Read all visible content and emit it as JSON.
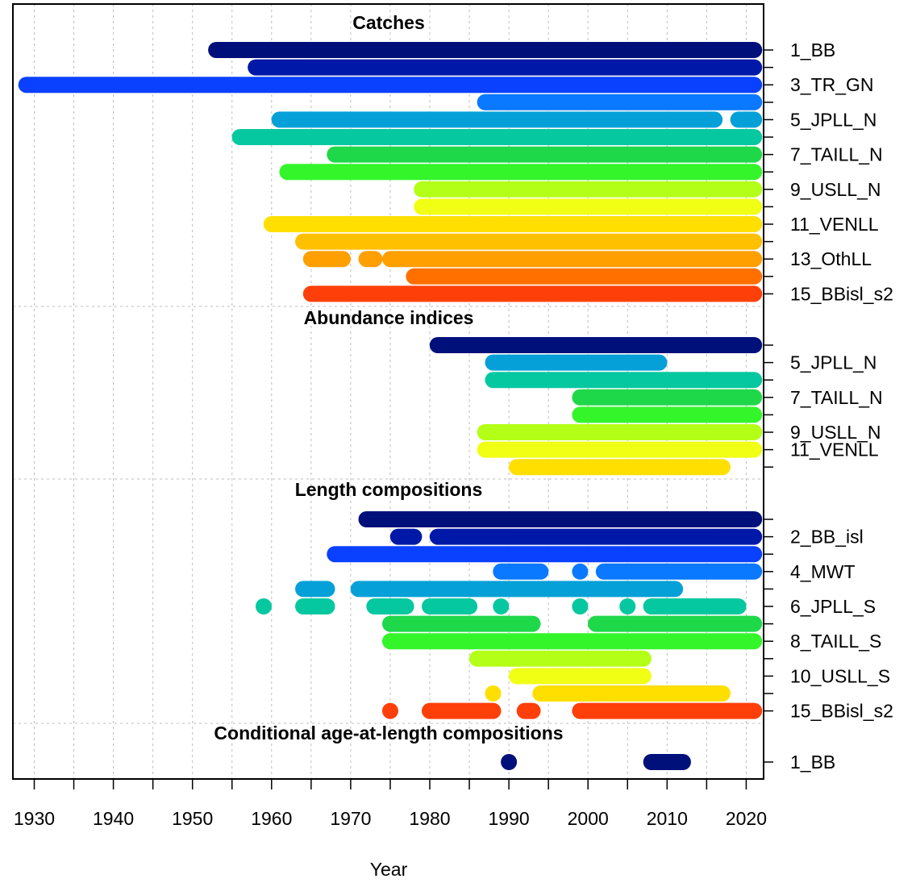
{
  "chart_data": {
    "type": "timeline",
    "xlabel": "Year",
    "xlim": [
      1927.3,
      2022.2
    ],
    "x_ticks": [
      1930,
      1940,
      1950,
      1960,
      1970,
      1980,
      1990,
      2000,
      2010,
      2020
    ],
    "grid": true,
    "sections": [
      {
        "title": "Catches",
        "labels": [
          {
            "row": 1,
            "text": "1_BB"
          },
          {
            "row": 3,
            "text": "3_TR_GN"
          },
          {
            "row": 5,
            "text": "5_JPLL_N"
          },
          {
            "row": 7,
            "text": "7_TAILL_N"
          },
          {
            "row": 9,
            "text": "9_USLL_N"
          },
          {
            "row": 11,
            "text": "11_VENLL"
          },
          {
            "row": 13,
            "text": "13_OthLL"
          },
          {
            "row": 15,
            "text": "15_BBisl_s2"
          }
        ],
        "rows": [
          {
            "color": "#00107a",
            "segments": [
              [
                1953,
                2021
              ]
            ]
          },
          {
            "color": "#0018a8",
            "segments": [
              [
                1958,
                2021
              ]
            ]
          },
          {
            "color": "#0a40ff",
            "segments": [
              [
                1929,
                2021
              ]
            ]
          },
          {
            "color": "#0a78ff",
            "segments": [
              [
                1987,
                2021
              ]
            ]
          },
          {
            "color": "#06a0d8",
            "segments": [
              [
                1961,
                2016
              ],
              [
                2019,
                2021
              ]
            ]
          },
          {
            "color": "#06c8a0",
            "segments": [
              [
                1956,
                2021
              ]
            ]
          },
          {
            "color": "#1fd84a",
            "segments": [
              [
                1968,
                2021
              ]
            ]
          },
          {
            "color": "#34f52a",
            "segments": [
              [
                1962,
                2021
              ]
            ]
          },
          {
            "color": "#b4ff18",
            "segments": [
              [
                1979,
                2021
              ]
            ]
          },
          {
            "color": "#f0ff14",
            "segments": [
              [
                1979,
                2021
              ]
            ]
          },
          {
            "color": "#ffdf00",
            "segments": [
              [
                1960,
                2021
              ]
            ]
          },
          {
            "color": "#ffc000",
            "segments": [
              [
                1964,
                2021
              ]
            ]
          },
          {
            "color": "#ff9f00",
            "segments": [
              [
                1965,
                1969
              ],
              [
                1972,
                1973
              ],
              [
                1975,
                2021
              ]
            ]
          },
          {
            "color": "#ff7000",
            "segments": [
              [
                1978,
                2021
              ]
            ]
          },
          {
            "color": "#ff3f0a",
            "segments": [
              [
                1965,
                2021
              ]
            ]
          }
        ]
      },
      {
        "title": "Abundance indices",
        "labels": [
          {
            "row": 2,
            "text": "5_JPLL_N"
          },
          {
            "row": 4,
            "text": "7_TAILL_N"
          },
          {
            "row": 6,
            "text": "9_USLL_N"
          },
          {
            "row": 7,
            "text": "11_VENLL"
          }
        ],
        "rows": [
          {
            "color": "#00107a",
            "segments": [
              [
                1981,
                2021
              ]
            ]
          },
          {
            "color": "#06a0d8",
            "segments": [
              [
                1988,
                2009
              ]
            ]
          },
          {
            "color": "#06c8a0",
            "segments": [
              [
                1988,
                2021
              ]
            ]
          },
          {
            "color": "#1fd84a",
            "segments": [
              [
                1999,
                2021
              ]
            ]
          },
          {
            "color": "#34f52a",
            "segments": [
              [
                1999,
                2021
              ]
            ]
          },
          {
            "color": "#b4ff18",
            "segments": [
              [
                1987,
                2021
              ]
            ]
          },
          {
            "color": "#f0ff14",
            "segments": [
              [
                1987,
                2021
              ]
            ]
          },
          {
            "color": "#ffdf00",
            "segments": [
              [
                1991,
                2017
              ]
            ]
          }
        ]
      },
      {
        "title": "Length compositions",
        "labels": [
          {
            "row": 2,
            "text": "2_BB_isl"
          },
          {
            "row": 4,
            "text": "4_MWT"
          },
          {
            "row": 6,
            "text": "6_JPLL_S"
          },
          {
            "row": 8,
            "text": "8_TAILL_S"
          },
          {
            "row": 10,
            "text": "10_USLL_S"
          },
          {
            "row": 12,
            "text": "15_BBisl_s2"
          }
        ],
        "rows": [
          {
            "color": "#00107a",
            "segments": [
              [
                1972,
                2021
              ]
            ]
          },
          {
            "color": "#0018a8",
            "segments": [
              [
                1976,
                1978
              ],
              [
                1981,
                2021
              ]
            ]
          },
          {
            "color": "#0a40ff",
            "segments": [
              [
                1968,
                2021
              ]
            ]
          },
          {
            "color": "#0a78ff",
            "segments": [
              [
                1989,
                1994
              ],
              [
                1999,
                1999
              ],
              [
                2002,
                2021
              ]
            ]
          },
          {
            "color": "#06a0d8",
            "segments": [
              [
                1964,
                1967
              ],
              [
                1971,
                2011
              ]
            ]
          },
          {
            "color": "#06c8a0",
            "segments": [
              [
                1959,
                1959
              ],
              [
                1964,
                1967
              ],
              [
                1973,
                1977
              ],
              [
                1980,
                1985
              ],
              [
                1989,
                1989
              ],
              [
                1999,
                1999
              ],
              [
                2005,
                2005
              ],
              [
                2008,
                2019
              ]
            ]
          },
          {
            "color": "#1fd84a",
            "segments": [
              [
                1975,
                1993
              ],
              [
                2001,
                2021
              ]
            ]
          },
          {
            "color": "#34f52a",
            "segments": [
              [
                1975,
                2021
              ]
            ]
          },
          {
            "color": "#b4ff18",
            "segments": [
              [
                1986,
                2007
              ]
            ]
          },
          {
            "color": "#f0ff14",
            "segments": [
              [
                1991,
                2007
              ]
            ]
          },
          {
            "color": "#ffdf00",
            "segments": [
              [
                1988,
                1988
              ],
              [
                1994,
                2017
              ]
            ]
          },
          {
            "color": "#ff3f0a",
            "segments": [
              [
                1975,
                1975
              ],
              [
                1980,
                1988
              ],
              [
                1992,
                1993
              ],
              [
                1999,
                2021
              ]
            ]
          }
        ]
      },
      {
        "title": "Conditional age-at-length compositions",
        "labels": [
          {
            "row": 1,
            "text": "1_BB"
          }
        ],
        "rows": [
          {
            "color": "#00107a",
            "segments": [
              [
                1990,
                1990
              ],
              [
                2008,
                2012
              ]
            ]
          }
        ]
      }
    ]
  }
}
